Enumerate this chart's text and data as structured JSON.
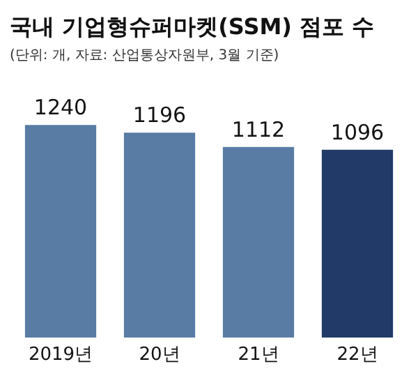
{
  "chart_data": {
    "type": "bar",
    "title": "국내 기업형슈퍼마켓(SSM) 점포 수",
    "subtitle": "(단위: 개, 자료: 산업통상자원부, 3월 기준)",
    "categories": [
      "2019년",
      "20년",
      "21년",
      "22년"
    ],
    "values": [
      1240,
      1196,
      1112,
      1096
    ],
    "colors": [
      "#587ca4",
      "#587ca4",
      "#587ca4",
      "#213a68"
    ],
    "data_labels": true
  }
}
